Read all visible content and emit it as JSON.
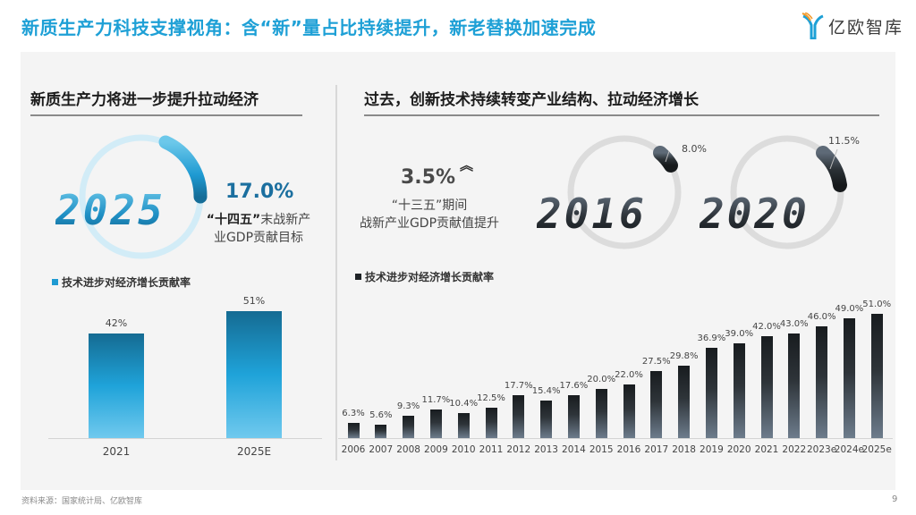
{
  "header": {
    "title": "新质生产力科技支撑视角：含“新”量占比持续提升，新老替换加速完成",
    "logo_text": "亿欧智库",
    "logo_icon": "yiou-logo-icon"
  },
  "left": {
    "section_title": "新质生产力将进一步提升拉动经济",
    "year": "2025",
    "pct": "17.0%",
    "desc_quote": "“十四五”",
    "desc_line1_rest": "末战新产",
    "desc_line2": "业GDP贡献目标",
    "legend": "技术进步对经济增长贡献率",
    "accent_color": "#1ea0d6"
  },
  "right": {
    "section_title": "过去，创新技术持续转变产业结构、拉动经济增长",
    "pct": "3.5%",
    "up_icon": "double-chevron-up-icon",
    "desc_line1": "“十三五”期间",
    "desc_line2": "战新产业GDP贡献值提升",
    "gauge_2016": {
      "year": "2016",
      "pct": "8.0%"
    },
    "gauge_2020": {
      "year": "2020",
      "pct": "11.5%"
    },
    "legend": "技术进步对经济增长贡献率"
  },
  "footer": {
    "source": "资料来源：国家统计局、亿欧智库",
    "page": "9"
  },
  "chart_data": [
    {
      "type": "bar",
      "title": "技术进步对经济增长贡献率",
      "categories": [
        "2021",
        "2025E"
      ],
      "values": [
        42,
        51
      ],
      "labels": [
        "42%",
        "51%"
      ],
      "xlabel": "",
      "ylabel": "",
      "ylim": [
        0,
        60
      ],
      "grid": false,
      "legend_position": "top-left",
      "color": "#1ea0d6"
    },
    {
      "type": "bar",
      "title": "技术进步对经济增长贡献率",
      "categories": [
        "2006",
        "2007",
        "2008",
        "2009",
        "2010",
        "2011",
        "2012",
        "2013",
        "2014",
        "2015",
        "2016",
        "2017",
        "2018",
        "2019",
        "2020",
        "2021",
        "2022",
        "2023e",
        "2024e",
        "2025e"
      ],
      "values": [
        6.3,
        5.6,
        9.3,
        11.7,
        10.4,
        12.5,
        17.7,
        15.4,
        17.6,
        20.0,
        22.0,
        27.5,
        29.8,
        36.9,
        39.0,
        42.0,
        43.0,
        46.0,
        49.0,
        51.0
      ],
      "labels": [
        "6.3%",
        "5.6%",
        "9.3%",
        "11.7%",
        "10.4%",
        "12.5%",
        "17.7%",
        "15.4%",
        "17.6%",
        "20.0%",
        "22.0%",
        "27.5%",
        "29.8%",
        "36.9%",
        "39.0%",
        "42.0%",
        "43.0%",
        "46.0%",
        "49.0%",
        "51.0%"
      ],
      "xlabel": "",
      "ylabel": "",
      "ylim": [
        0,
        55
      ],
      "grid": false,
      "legend_position": "top-left",
      "color": "#1e2226"
    },
    {
      "type": "pie",
      "title": "2025 “十四五”末战新产业GDP贡献目标",
      "values": [
        17.0
      ],
      "labels": [
        "17.0%"
      ]
    },
    {
      "type": "pie",
      "title": "战新产业GDP贡献",
      "categories": [
        "2016",
        "2020"
      ],
      "values": [
        8.0,
        11.5
      ],
      "labels": [
        "8.0%",
        "11.5%"
      ]
    }
  ]
}
